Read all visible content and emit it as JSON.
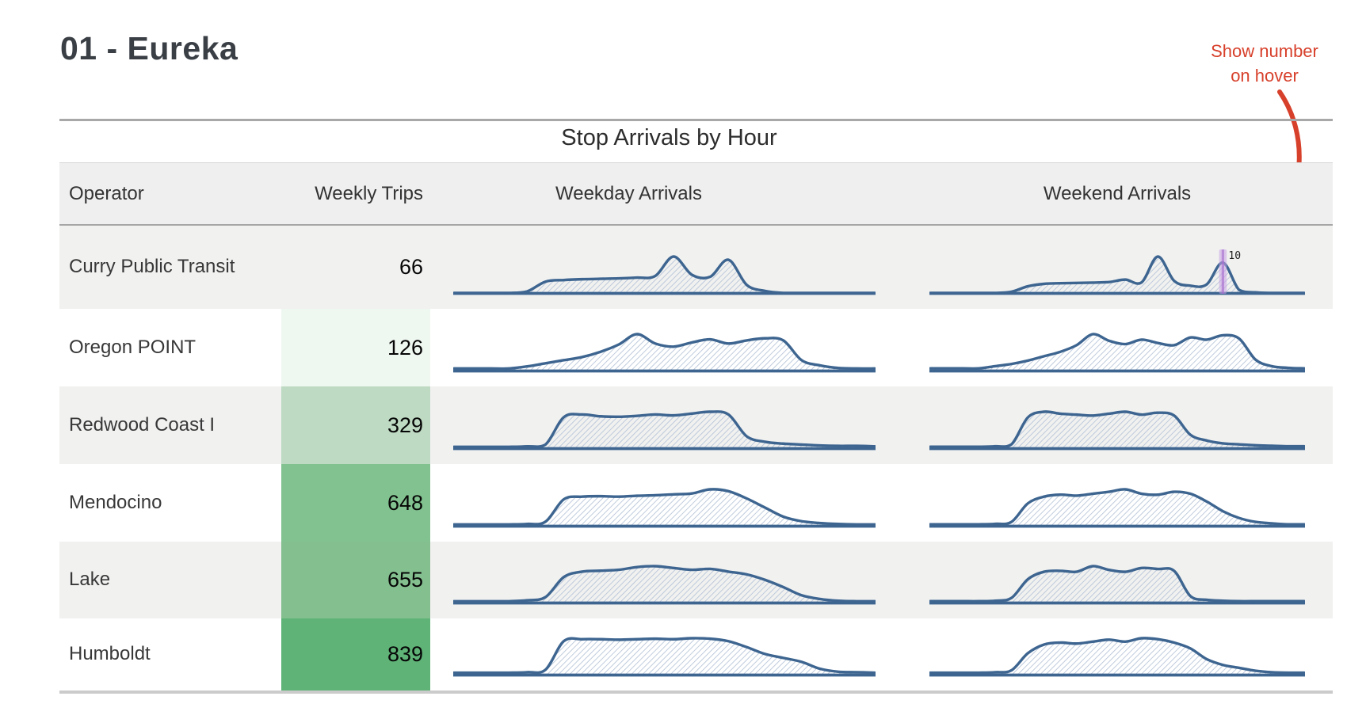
{
  "header": {
    "title": "01 - Eureka"
  },
  "annotation": {
    "line1": "Show number",
    "line2": "on hover",
    "color": "#d7402b"
  },
  "table": {
    "caption": "Stop Arrivals by Hour",
    "columns": [
      "Operator",
      "Weekly Trips",
      "Weekday Arrivals",
      "Weekend Arrivals"
    ]
  },
  "colors": {
    "line": "#3d6590",
    "hatch": "#b5c3d7",
    "highlight_fill": "#c9a2e6",
    "highlight_core": "#a96fd0",
    "odd_row": "#f1f1f0",
    "header_bg": "#efeff0"
  },
  "chart_data": {
    "type": "area",
    "title": "Stop Arrivals by Hour",
    "x_unit": "hour of day",
    "x": [
      0,
      1,
      2,
      3,
      4,
      5,
      6,
      7,
      8,
      9,
      10,
      11,
      12,
      13,
      14,
      15,
      16,
      17,
      18,
      19,
      20,
      21,
      22,
      23
    ],
    "legend": [
      "Weekday Arrivals",
      "Weekend Arrivals"
    ],
    "highlight": {
      "row_index": 0,
      "series": "weekend",
      "hour_index": 18,
      "label": "10"
    },
    "rows": [
      {
        "operator": "Curry Public Transit",
        "weekly_trips": "66",
        "trips_cell_bg": "rgba(0,0,0,0)",
        "weekday": [
          0,
          0,
          0,
          0,
          0.4,
          2.8,
          3.2,
          3.4,
          3.5,
          3.6,
          3.8,
          4.2,
          9,
          4.5,
          4,
          8.2,
          2,
          0.5,
          0,
          0,
          0,
          0,
          0,
          0
        ],
        "weekend": [
          0,
          0,
          0,
          0,
          0,
          0.4,
          2.2,
          3,
          3.2,
          3.3,
          3.4,
          3.6,
          4.4,
          3.5,
          12,
          4,
          2.4,
          2.8,
          10,
          1,
          0.2,
          0,
          0,
          0
        ]
      },
      {
        "operator": "Oregon POINT",
        "weekly_trips": "126",
        "trips_cell_bg": "#eff7f1",
        "weekday": [
          0.4,
          0.4,
          0.4,
          0.4,
          0.8,
          1.4,
          2,
          2.6,
          3.6,
          5,
          7,
          5.2,
          4.6,
          5.4,
          6,
          5.2,
          5.8,
          6.2,
          5.8,
          2,
          1,
          0.5,
          0.4,
          0.4
        ],
        "weekend": [
          0.4,
          0.4,
          0.4,
          0.4,
          0.8,
          1.2,
          1.8,
          2.6,
          3.4,
          4.6,
          6.6,
          5.4,
          4.8,
          5.6,
          5,
          4.6,
          6,
          5.6,
          6.4,
          5.8,
          2,
          0.8,
          0.5,
          0.4
        ]
      },
      {
        "operator": "Redwood Coast I",
        "weekly_trips": "329",
        "trips_cell_bg": "#bedac3",
        "weekday": [
          0.3,
          0.3,
          0.3,
          0.3,
          0.4,
          0.8,
          6.8,
          7.4,
          7,
          6.9,
          7.1,
          7.4,
          7.2,
          7.6,
          8,
          7.4,
          2.6,
          1.4,
          1,
          0.8,
          0.6,
          0.5,
          0.5,
          0.4
        ],
        "weekend": [
          0.3,
          0.3,
          0.3,
          0.3,
          0.4,
          0.8,
          6.4,
          7.6,
          7.2,
          7,
          6.8,
          7.2,
          7.6,
          7,
          7.4,
          6.8,
          2.8,
          1.6,
          1,
          0.8,
          0.6,
          0.5,
          0.4,
          0.4
        ]
      },
      {
        "operator": "Mendocino",
        "weekly_trips": "648",
        "trips_cell_bg": "#82c290",
        "weekday": [
          0.3,
          0.3,
          0.3,
          0.3,
          0.4,
          0.9,
          5.8,
          6.4,
          6.5,
          6.4,
          6.6,
          6.7,
          6.9,
          7.1,
          8,
          7.6,
          6,
          4,
          2,
          1,
          0.6,
          0.4,
          0.3,
          0.3
        ],
        "weekend": [
          0.3,
          0.3,
          0.3,
          0.3,
          0.4,
          0.8,
          4.6,
          6,
          6.4,
          6.2,
          6.6,
          7,
          7.5,
          6.6,
          6.4,
          7,
          6.6,
          5,
          3,
          1.6,
          0.8,
          0.5,
          0.3,
          0.3
        ]
      },
      {
        "operator": "Lake",
        "weekly_trips": "655",
        "trips_cell_bg": "#84bf8f",
        "weekday": [
          0.3,
          0.3,
          0.3,
          0.3,
          0.5,
          1.2,
          5.6,
          6.8,
          7,
          7.2,
          7.8,
          8,
          7.6,
          7.2,
          7.4,
          6.8,
          6.2,
          5,
          3.4,
          1.6,
          0.8,
          0.4,
          0.3,
          0.3
        ],
        "weekend": [
          0.3,
          0.3,
          0.3,
          0.3,
          0.4,
          1,
          5,
          6.6,
          6.8,
          6.6,
          7.8,
          7,
          6.6,
          7.4,
          7.2,
          6.8,
          1.4,
          0.6,
          0.4,
          0.3,
          0.3,
          0.3,
          0.3,
          0.3
        ]
      },
      {
        "operator": "Humboldt",
        "weekly_trips": "839",
        "trips_cell_bg": "#5fb377",
        "weekday": [
          0.4,
          0.4,
          0.4,
          0.4,
          0.5,
          1,
          6.8,
          7.2,
          7.2,
          7.1,
          7.2,
          7.3,
          7.2,
          7.4,
          7.3,
          6.8,
          5.6,
          4.2,
          3.4,
          2.6,
          1.2,
          0.6,
          0.5,
          0.4
        ],
        "weekend": [
          0.4,
          0.4,
          0.4,
          0.4,
          0.5,
          0.9,
          4.4,
          6.2,
          6.6,
          6.4,
          6.8,
          7.2,
          6.8,
          7.5,
          7.3,
          6.6,
          5.4,
          3.2,
          2,
          1.4,
          0.8,
          0.5,
          0.4,
          0.4
        ]
      }
    ]
  }
}
